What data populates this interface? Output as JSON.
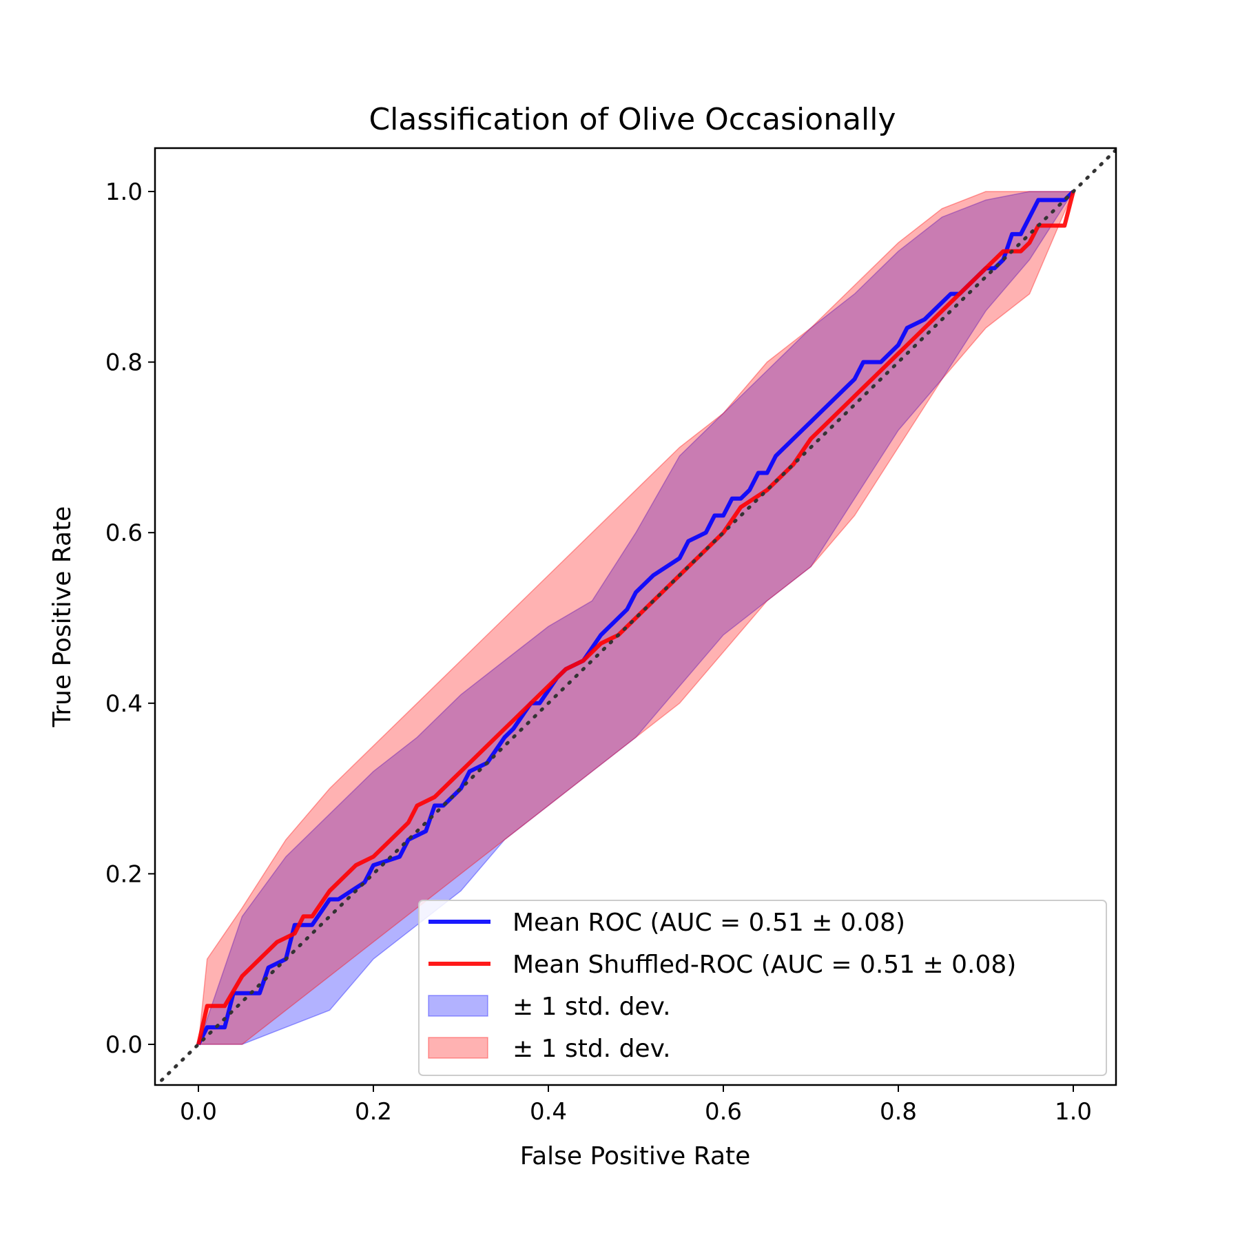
{
  "chart_data": {
    "type": "line",
    "title": "Classification of Olive Occasionally",
    "xlabel": "False Positive Rate",
    "ylabel": "True Positive Rate",
    "xlim": [
      -0.05,
      1.05
    ],
    "ylim": [
      -0.05,
      1.05
    ],
    "xticks": [
      "0.0",
      "0.2",
      "0.4",
      "0.6",
      "0.8",
      "1.0"
    ],
    "yticks": [
      "0.0",
      "0.2",
      "0.4",
      "0.6",
      "0.8",
      "1.0"
    ],
    "grid": false,
    "legend_position": "lower-right",
    "chance_line": {
      "x": [
        -0.05,
        1.05
      ],
      "y": [
        -0.05,
        1.05
      ],
      "color": "#333333",
      "style": "dotted"
    },
    "series": [
      {
        "name": "Mean ROC (AUC = 0.51 ± 0.08)",
        "color": "#0000ff",
        "x": [
          0,
          0.01,
          0.03,
          0.04,
          0.06,
          0.07,
          0.08,
          0.1,
          0.11,
          0.13,
          0.15,
          0.16,
          0.19,
          0.2,
          0.23,
          0.24,
          0.26,
          0.27,
          0.28,
          0.3,
          0.31,
          0.33,
          0.35,
          0.36,
          0.38,
          0.39,
          0.41,
          0.42,
          0.44,
          0.46,
          0.47,
          0.49,
          0.5,
          0.52,
          0.55,
          0.56,
          0.58,
          0.59,
          0.6,
          0.61,
          0.62,
          0.63,
          0.64,
          0.65,
          0.66,
          0.67,
          0.68,
          0.69,
          0.7,
          0.71,
          0.72,
          0.73,
          0.74,
          0.75,
          0.76,
          0.78,
          0.8,
          0.81,
          0.83,
          0.84,
          0.86,
          0.87,
          0.88,
          0.9,
          0.91,
          0.92,
          0.93,
          0.94,
          0.96,
          0.97,
          0.99,
          1.0
        ],
        "y": [
          0,
          0.02,
          0.02,
          0.06,
          0.06,
          0.06,
          0.09,
          0.1,
          0.14,
          0.14,
          0.17,
          0.17,
          0.19,
          0.21,
          0.22,
          0.24,
          0.25,
          0.28,
          0.28,
          0.3,
          0.32,
          0.33,
          0.36,
          0.37,
          0.4,
          0.4,
          0.43,
          0.44,
          0.45,
          0.48,
          0.49,
          0.51,
          0.53,
          0.55,
          0.57,
          0.59,
          0.6,
          0.62,
          0.62,
          0.64,
          0.64,
          0.65,
          0.67,
          0.67,
          0.69,
          0.7,
          0.71,
          0.72,
          0.73,
          0.74,
          0.75,
          0.76,
          0.77,
          0.78,
          0.8,
          0.8,
          0.82,
          0.84,
          0.85,
          0.86,
          0.88,
          0.88,
          0.89,
          0.91,
          0.91,
          0.92,
          0.95,
          0.95,
          0.99,
          0.99,
          0.99,
          1.0
        ]
      },
      {
        "name": "Mean Shuffled-ROC (AUC = 0.51 ± 0.08)",
        "color": "#ff0000",
        "x": [
          0,
          0.01,
          0.03,
          0.05,
          0.06,
          0.07,
          0.09,
          0.11,
          0.12,
          0.13,
          0.15,
          0.16,
          0.18,
          0.2,
          0.22,
          0.24,
          0.25,
          0.27,
          0.28,
          0.29,
          0.31,
          0.33,
          0.35,
          0.36,
          0.38,
          0.39,
          0.41,
          0.42,
          0.44,
          0.46,
          0.48,
          0.5,
          0.51,
          0.54,
          0.56,
          0.58,
          0.6,
          0.62,
          0.65,
          0.68,
          0.7,
          0.72,
          0.74,
          0.76,
          0.78,
          0.8,
          0.82,
          0.84,
          0.86,
          0.88,
          0.9,
          0.92,
          0.94,
          0.95,
          0.96,
          0.97,
          0.99,
          1.0
        ],
        "y": [
          0,
          0.045,
          0.045,
          0.08,
          0.09,
          0.1,
          0.12,
          0.13,
          0.15,
          0.15,
          0.18,
          0.19,
          0.21,
          0.22,
          0.24,
          0.26,
          0.28,
          0.29,
          0.3,
          0.31,
          0.33,
          0.35,
          0.37,
          0.38,
          0.4,
          0.41,
          0.43,
          0.44,
          0.45,
          0.47,
          0.48,
          0.5,
          0.51,
          0.54,
          0.56,
          0.58,
          0.6,
          0.63,
          0.65,
          0.68,
          0.71,
          0.73,
          0.75,
          0.77,
          0.79,
          0.81,
          0.83,
          0.85,
          0.87,
          0.89,
          0.91,
          0.93,
          0.93,
          0.94,
          0.96,
          0.96,
          0.96,
          1.0
        ]
      }
    ],
    "bands": [
      {
        "name": "± 1 std. dev.",
        "color": "#0000ff",
        "opacity": 0.3,
        "x": [
          0,
          0.02,
          0.05,
          0.1,
          0.15,
          0.2,
          0.25,
          0.3,
          0.35,
          0.4,
          0.45,
          0.5,
          0.55,
          0.6,
          0.65,
          0.7,
          0.75,
          0.8,
          0.85,
          0.9,
          0.95,
          1.0
        ],
        "upper": [
          0,
          0.06,
          0.15,
          0.22,
          0.27,
          0.32,
          0.36,
          0.41,
          0.45,
          0.49,
          0.52,
          0.6,
          0.69,
          0.74,
          0.79,
          0.84,
          0.88,
          0.93,
          0.97,
          0.99,
          1.0,
          1.0
        ],
        "lower": [
          0,
          0.0,
          0.0,
          0.02,
          0.04,
          0.1,
          0.14,
          0.18,
          0.24,
          0.28,
          0.32,
          0.36,
          0.42,
          0.48,
          0.52,
          0.56,
          0.64,
          0.72,
          0.78,
          0.86,
          0.92,
          1.0
        ]
      },
      {
        "name": "± 1 std. dev.",
        "color": "#ff0000",
        "opacity": 0.3,
        "x": [
          0,
          0.01,
          0.05,
          0.1,
          0.15,
          0.2,
          0.25,
          0.3,
          0.35,
          0.4,
          0.45,
          0.5,
          0.55,
          0.6,
          0.65,
          0.7,
          0.75,
          0.8,
          0.85,
          0.9,
          0.95,
          1.0
        ],
        "upper": [
          0,
          0.1,
          0.16,
          0.24,
          0.3,
          0.35,
          0.4,
          0.45,
          0.5,
          0.55,
          0.6,
          0.65,
          0.7,
          0.74,
          0.8,
          0.84,
          0.89,
          0.94,
          0.98,
          1.0,
          1.0,
          1.0
        ],
        "lower": [
          0,
          0.0,
          0.0,
          0.04,
          0.08,
          0.12,
          0.16,
          0.2,
          0.24,
          0.28,
          0.32,
          0.36,
          0.4,
          0.46,
          0.52,
          0.56,
          0.62,
          0.7,
          0.78,
          0.84,
          0.88,
          1.0
        ]
      }
    ],
    "legend": [
      {
        "label": "Mean ROC (AUC = 0.51 ± 0.08)",
        "kind": "line",
        "color": "#0000ff"
      },
      {
        "label": "Mean Shuffled-ROC (AUC = 0.51 ± 0.08)",
        "kind": "line",
        "color": "#ff0000"
      },
      {
        "label": "± 1 std. dev.",
        "kind": "patch",
        "color": "#0000ff"
      },
      {
        "label": "± 1 std. dev.",
        "kind": "patch",
        "color": "#ff0000"
      }
    ]
  }
}
